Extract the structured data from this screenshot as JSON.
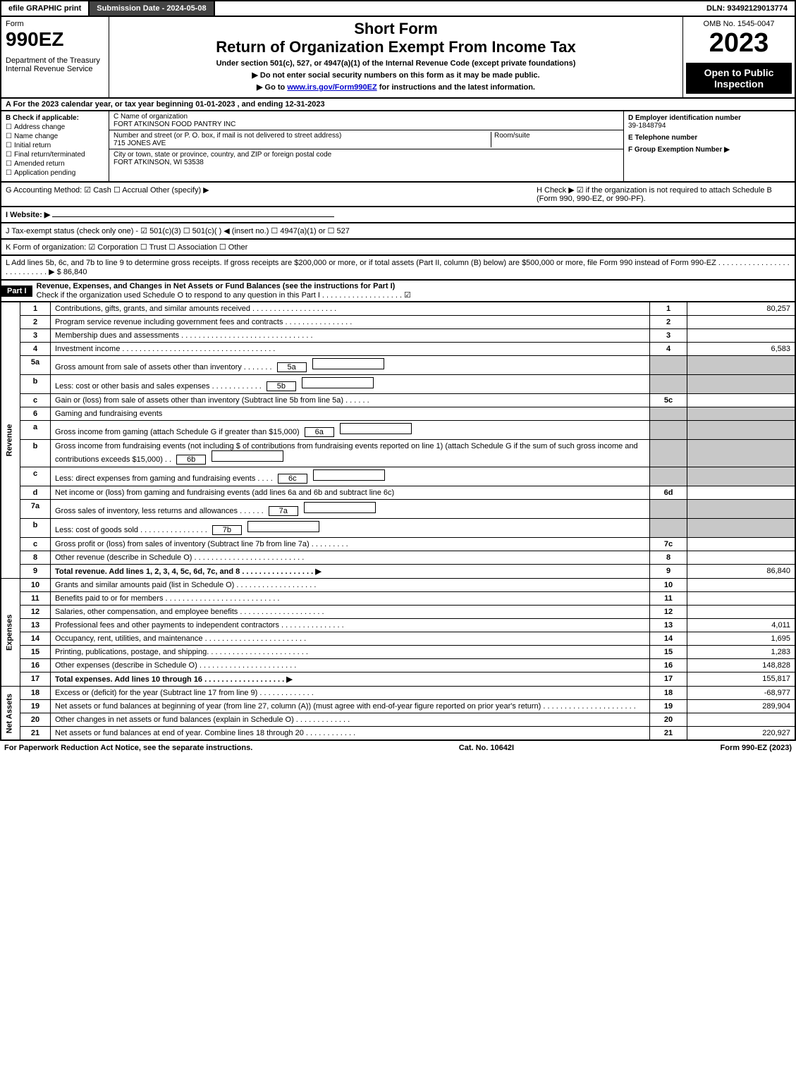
{
  "topbar": {
    "efile": "efile GRAPHIC print",
    "submission": "Submission Date - 2024-05-08",
    "dln": "DLN: 93492129013774"
  },
  "header": {
    "form_label": "Form",
    "form_no": "990EZ",
    "dept": "Department of the Treasury\nInternal Revenue Service",
    "short_form": "Short Form",
    "main_title": "Return of Organization Exempt From Income Tax",
    "under": "Under section 501(c), 527, or 4947(a)(1) of the Internal Revenue Code (except private foundations)",
    "note1": "▶ Do not enter social security numbers on this form as it may be made public.",
    "note2": "▶ Go to www.irs.gov/Form990EZ for instructions and the latest information.",
    "omb": "OMB No. 1545-0047",
    "year": "2023",
    "open": "Open to Public Inspection"
  },
  "section_a": "A  For the 2023 calendar year, or tax year beginning 01-01-2023 , and ending 12-31-2023",
  "section_b": {
    "label": "B  Check if applicable:",
    "opts": [
      "Address change",
      "Name change",
      "Initial return",
      "Final return/terminated",
      "Amended return",
      "Application pending"
    ]
  },
  "section_c": {
    "name_label": "C Name of organization",
    "name": "FORT ATKINSON FOOD PANTRY INC",
    "street_label": "Number and street (or P. O. box, if mail is not delivered to street address)",
    "room_label": "Room/suite",
    "street": "715 JONES AVE",
    "city_label": "City or town, state or province, country, and ZIP or foreign postal code",
    "city": "FORT ATKINSON, WI  53538"
  },
  "section_d": {
    "ein_label": "D Employer identification number",
    "ein": "39-1848794",
    "tel_label": "E Telephone number",
    "group_label": "F Group Exemption Number   ▶"
  },
  "row_g": {
    "left": "G Accounting Method:   ☑ Cash  ☐ Accrual   Other (specify) ▶",
    "right": "H   Check ▶  ☑  if the organization is not required to attach Schedule B (Form 990, 990-EZ, or 990-PF)."
  },
  "row_i": "I Website: ▶",
  "row_j": "J Tax-exempt status (check only one) -  ☑ 501(c)(3)  ☐  501(c)(  ) ◀ (insert no.)  ☐  4947(a)(1) or  ☐  527",
  "row_k": "K Form of organization:   ☑ Corporation   ☐ Trust   ☐ Association   ☐ Other",
  "row_l": "L Add lines 5b, 6c, and 7b to line 9 to determine gross receipts. If gross receipts are $200,000 or more, or if total assets (Part II, column (B) below) are $500,000 or more, file Form 990 instead of Form 990-EZ . . . . . . . . . . . . . . . . . . . . . . . . . . . ▶ $ 86,840",
  "part1": {
    "label": "Part I",
    "title": "Revenue, Expenses, and Changes in Net Assets or Fund Balances (see the instructions for Part I)",
    "check": "Check if the organization used Schedule O to respond to any question in this Part I . . . . . . . . . . . . . . . . . . .   ☑"
  },
  "sections": {
    "revenue": "Revenue",
    "expenses": "Expenses",
    "netassets": "Net Assets"
  },
  "lines": [
    {
      "no": "1",
      "desc": "Contributions, gifts, grants, and similar amounts received . . . . . . . . . . . . . . . . . . . .",
      "num": "1",
      "val": "80,257"
    },
    {
      "no": "2",
      "desc": "Program service revenue including government fees and contracts . . . . . . . . . . . . . . . .",
      "num": "2",
      "val": ""
    },
    {
      "no": "3",
      "desc": "Membership dues and assessments . . . . . . . . . . . . . . . . . . . . . . . . . . . . . . .",
      "num": "3",
      "val": ""
    },
    {
      "no": "4",
      "desc": "Investment income . . . . . . . . . . . . . . . . . . . . . . . . . . . . . . . . . . . .",
      "num": "4",
      "val": "6,583"
    },
    {
      "no": "5a",
      "desc": "Gross amount from sale of assets other than inventory . . . . . . .",
      "box": "5a",
      "shaded": true
    },
    {
      "no": "b",
      "desc": "Less: cost or other basis and sales expenses . . . . . . . . . . . .",
      "box": "5b",
      "shaded": true
    },
    {
      "no": "c",
      "desc": "Gain or (loss) from sale of assets other than inventory (Subtract line 5b from line 5a) . . . . . .",
      "num": "5c",
      "val": ""
    },
    {
      "no": "6",
      "desc": "Gaming and fundraising events",
      "shaded": true
    },
    {
      "no": "a",
      "desc": "Gross income from gaming (attach Schedule G if greater than $15,000)",
      "box": "6a",
      "shaded": true
    },
    {
      "no": "b",
      "desc": "Gross income from fundraising events (not including $                  of contributions from fundraising events reported on line 1) (attach Schedule G if the sum of such gross income and contributions exceeds $15,000)   . .",
      "box": "6b",
      "shaded": true
    },
    {
      "no": "c",
      "desc": "Less: direct expenses from gaming and fundraising events    . . . .",
      "box": "6c",
      "shaded": true
    },
    {
      "no": "d",
      "desc": "Net income or (loss) from gaming and fundraising events (add lines 6a and 6b and subtract line 6c)",
      "num": "6d",
      "val": ""
    },
    {
      "no": "7a",
      "desc": "Gross sales of inventory, less returns and allowances . . . . . .",
      "box": "7a",
      "shaded": true
    },
    {
      "no": "b",
      "desc": "Less: cost of goods sold         . . . . . . . . . . . . . . . .",
      "box": "7b",
      "shaded": true
    },
    {
      "no": "c",
      "desc": "Gross profit or (loss) from sales of inventory (Subtract line 7b from line 7a) . . . . . . . . .",
      "num": "7c",
      "val": ""
    },
    {
      "no": "8",
      "desc": "Other revenue (describe in Schedule O) . . . . . . . . . . . . . . . . . . . . . . . . . .",
      "num": "8",
      "val": ""
    },
    {
      "no": "9",
      "desc": "Total revenue. Add lines 1, 2, 3, 4, 5c, 6d, 7c, and 8  . . . . . . . . . . . . . . . . .  ▶",
      "num": "9",
      "val": "86,840",
      "bold": true
    }
  ],
  "exp_lines": [
    {
      "no": "10",
      "desc": "Grants and similar amounts paid (list in Schedule O) . . . . . . . . . . . . . . . . . . .",
      "num": "10",
      "val": ""
    },
    {
      "no": "11",
      "desc": "Benefits paid to or for members     . . . . . . . . . . . . . . . . . . . . . . . . . . .",
      "num": "11",
      "val": ""
    },
    {
      "no": "12",
      "desc": "Salaries, other compensation, and employee benefits . . . . . . . . . . . . . . . . . . . .",
      "num": "12",
      "val": ""
    },
    {
      "no": "13",
      "desc": "Professional fees and other payments to independent contractors . . . . . . . . . . . . . . .",
      "num": "13",
      "val": "4,011"
    },
    {
      "no": "14",
      "desc": "Occupancy, rent, utilities, and maintenance . . . . . . . . . . . . . . . . . . . . . . . .",
      "num": "14",
      "val": "1,695"
    },
    {
      "no": "15",
      "desc": "Printing, publications, postage, and shipping. . . . . . . . . . . . . . . . . . . . . . . .",
      "num": "15",
      "val": "1,283"
    },
    {
      "no": "16",
      "desc": "Other expenses (describe in Schedule O)      . . . . . . . . . . . . . . . . . . . . . . .",
      "num": "16",
      "val": "148,828"
    },
    {
      "no": "17",
      "desc": "Total expenses. Add lines 10 through 16      . . . . . . . . . . . . . . . . . . .  ▶",
      "num": "17",
      "val": "155,817",
      "bold": true
    }
  ],
  "net_lines": [
    {
      "no": "18",
      "desc": "Excess or (deficit) for the year (Subtract line 17 from line 9)        . . . . . . . . . . . . .",
      "num": "18",
      "val": "-68,977"
    },
    {
      "no": "19",
      "desc": "Net assets or fund balances at beginning of year (from line 27, column (A)) (must agree with end-of-year figure reported on prior year's return) . . . . . . . . . . . . . . . . . . . . . .",
      "num": "19",
      "val": "289,904"
    },
    {
      "no": "20",
      "desc": "Other changes in net assets or fund balances (explain in Schedule O) . . . . . . . . . . . . .",
      "num": "20",
      "val": ""
    },
    {
      "no": "21",
      "desc": "Net assets or fund balances at end of year. Combine lines 18 through 20 . . . . . . . . . . . .",
      "num": "21",
      "val": "220,927"
    }
  ],
  "footer": {
    "left": "For Paperwork Reduction Act Notice, see the separate instructions.",
    "center": "Cat. No. 10642I",
    "right": "Form 990-EZ (2023)"
  }
}
